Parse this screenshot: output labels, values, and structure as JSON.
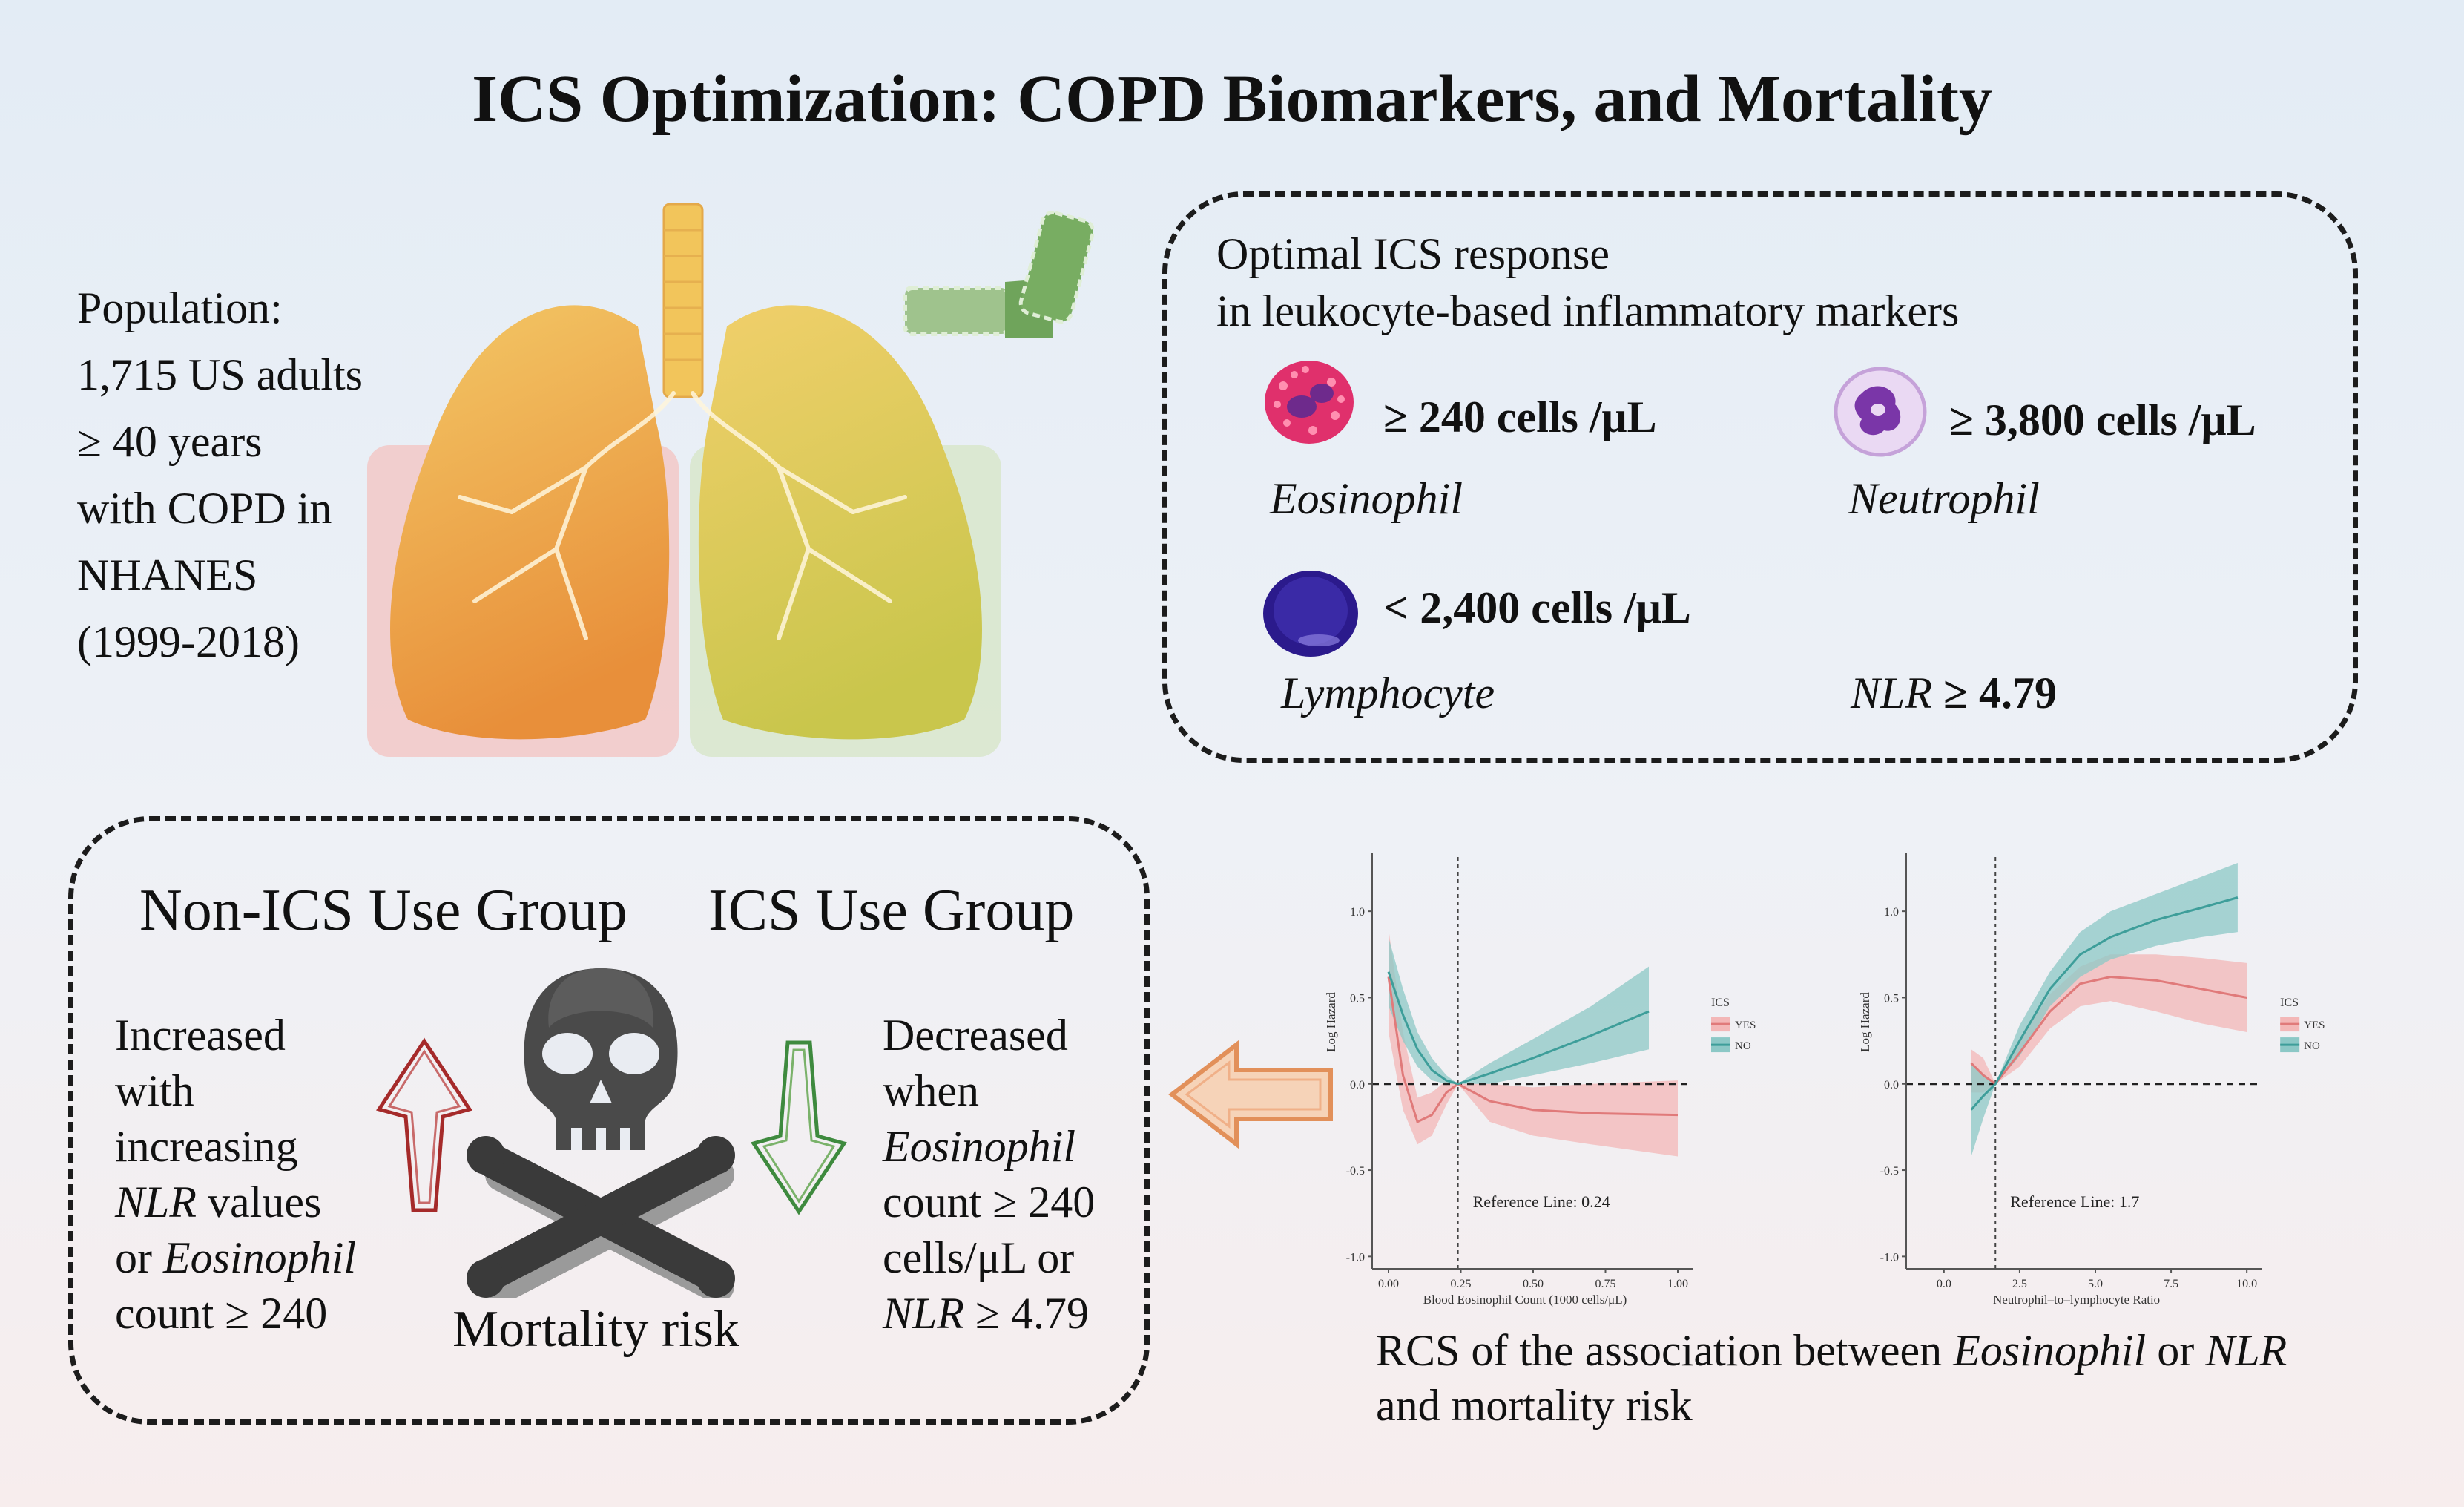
{
  "title": "ICS Optimization: COPD Biomarkers, and Mortality",
  "population": {
    "lines": [
      "Population:",
      "1,715 US adults",
      "≥ 40 years",
      "with COPD in",
      "NHANES",
      "(1999-2018)"
    ]
  },
  "optimal": {
    "heading_line1": "Optimal ICS response",
    "heading_line2": "in leukocyte-based inflammatory markers",
    "eosinophil": {
      "threshold": "≥ 240 cells /μL",
      "label": "Eosinophil"
    },
    "neutrophil": {
      "threshold": "≥ 3,800 cells /μL",
      "label": "Neutrophil"
    },
    "lymphocyte": {
      "threshold": "< 2,400 cells /μL",
      "label": "Lymphocyte"
    },
    "nlr": {
      "label": "NLR",
      "threshold": "≥ 4.79"
    }
  },
  "groups": {
    "non_ics_title": "Non-ICS Use Group",
    "ics_title": "ICS Use Group",
    "non_ics_text": {
      "l1": "Increased",
      "l2": "with",
      "l3": "increasing",
      "l4_it": "NLR",
      "l4": " values",
      "l5": "or ",
      "l5_it": "Eosinophil",
      "l6": "count ≥ 240"
    },
    "ics_text": {
      "l1": "Decreased",
      "l2": "when",
      "l3_it": "Eosinophil",
      "l4": "count ≥ 240",
      "l5": "cells/μL or",
      "l6_it": "NLR",
      "l6": " ≥ 4.79"
    },
    "mortality_label": "Mortality risk"
  },
  "rcs_caption": {
    "p1": "RCS of the association between ",
    "it1": "Eosinophil",
    "p2": " or ",
    "it2": "NLR",
    "line2": "and mortality risk"
  },
  "colors": {
    "yes": "#e07a7a",
    "no": "#3e9e9a",
    "yes_band": "#f3b7b7",
    "no_band": "#8cc8c6"
  },
  "chart_data": [
    {
      "type": "line",
      "xlabel": "Blood Eosinophil Count (1000 cells/μL)",
      "ylabel": "Log Hazard",
      "xlim": [
        0,
        1.0
      ],
      "ylim": [
        -1.05,
        1.25
      ],
      "x_ticks": [
        "0.00",
        "0.25",
        "0.50",
        "0.75",
        "1.00"
      ],
      "x_tick_values": [
        0,
        0.25,
        0.5,
        0.75,
        1.0
      ],
      "y_ticks": [
        "-1.0",
        "-0.5",
        "0.0",
        "0.5",
        "1.0"
      ],
      "y_tick_values": [
        -1.0,
        -0.5,
        0.0,
        0.5,
        1.0
      ],
      "reference_x": 0.24,
      "reference_label": "Reference Line: 0.24",
      "legend": {
        "title": "ICS",
        "position": "right"
      },
      "series": [
        {
          "name": "YES",
          "x": [
            0,
            0.05,
            0.1,
            0.15,
            0.2,
            0.24,
            0.35,
            0.5,
            0.7,
            1.0
          ],
          "y": [
            0.62,
            0.05,
            -0.22,
            -0.18,
            -0.05,
            0.0,
            -0.1,
            -0.15,
            -0.17,
            -0.18
          ],
          "lower": [
            0.3,
            -0.15,
            -0.35,
            -0.3,
            -0.12,
            0.0,
            -0.22,
            -0.3,
            -0.35,
            -0.42
          ],
          "upper": [
            0.9,
            0.3,
            -0.08,
            -0.05,
            0.02,
            0.0,
            0.0,
            -0.02,
            0.0,
            0.02
          ]
        },
        {
          "name": "NO",
          "x": [
            0,
            0.05,
            0.1,
            0.15,
            0.2,
            0.24,
            0.35,
            0.5,
            0.7,
            0.9
          ],
          "y": [
            0.65,
            0.4,
            0.2,
            0.08,
            0.02,
            0.0,
            0.06,
            0.15,
            0.28,
            0.42
          ],
          "lower": [
            0.45,
            0.25,
            0.1,
            0.02,
            0.0,
            0.0,
            0.0,
            0.05,
            0.12,
            0.2
          ],
          "upper": [
            0.85,
            0.55,
            0.3,
            0.15,
            0.05,
            0.0,
            0.12,
            0.26,
            0.45,
            0.68
          ]
        }
      ]
    },
    {
      "type": "line",
      "xlabel": "Neutrophil–to–lymphocyte Ratio",
      "ylabel": "Log Hazard",
      "xlim": [
        -1,
        11
      ],
      "ylim": [
        -1.05,
        1.25
      ],
      "x_ticks": [
        "0.0",
        "2.5",
        "5.0",
        "7.5",
        "10.0"
      ],
      "x_tick_values": [
        0,
        2.5,
        5,
        7.5,
        10
      ],
      "y_ticks": [
        "-1.0",
        "-0.5",
        "0.0",
        "0.5",
        "1.0"
      ],
      "y_tick_values": [
        -1.0,
        -0.5,
        0.0,
        0.5,
        1.0
      ],
      "reference_x": 1.7,
      "reference_label": "Reference Line: 1.7",
      "legend": {
        "title": "ICS",
        "position": "right"
      },
      "series": [
        {
          "name": "YES",
          "x": [
            0.9,
            1.3,
            1.7,
            2.5,
            3.5,
            4.5,
            5.5,
            7,
            8.5,
            10
          ],
          "y": [
            0.12,
            0.05,
            0.0,
            0.18,
            0.42,
            0.58,
            0.62,
            0.6,
            0.55,
            0.5
          ],
          "lower": [
            -0.05,
            -0.05,
            0.0,
            0.1,
            0.32,
            0.45,
            0.48,
            0.42,
            0.35,
            0.3
          ],
          "upper": [
            0.2,
            0.15,
            0.0,
            0.26,
            0.52,
            0.68,
            0.75,
            0.75,
            0.73,
            0.7
          ]
        },
        {
          "name": "NO",
          "x": [
            0.9,
            1.3,
            1.7,
            2.5,
            3.5,
            4.5,
            5.5,
            7,
            8.5,
            9.7
          ],
          "y": [
            -0.15,
            -0.07,
            0.0,
            0.25,
            0.55,
            0.75,
            0.85,
            0.95,
            1.02,
            1.08
          ],
          "lower": [
            -0.42,
            -0.2,
            0.0,
            0.16,
            0.45,
            0.62,
            0.72,
            0.8,
            0.85,
            0.88
          ],
          "upper": [
            0.12,
            0.06,
            0.0,
            0.34,
            0.65,
            0.88,
            1.0,
            1.1,
            1.2,
            1.28
          ]
        }
      ]
    }
  ]
}
